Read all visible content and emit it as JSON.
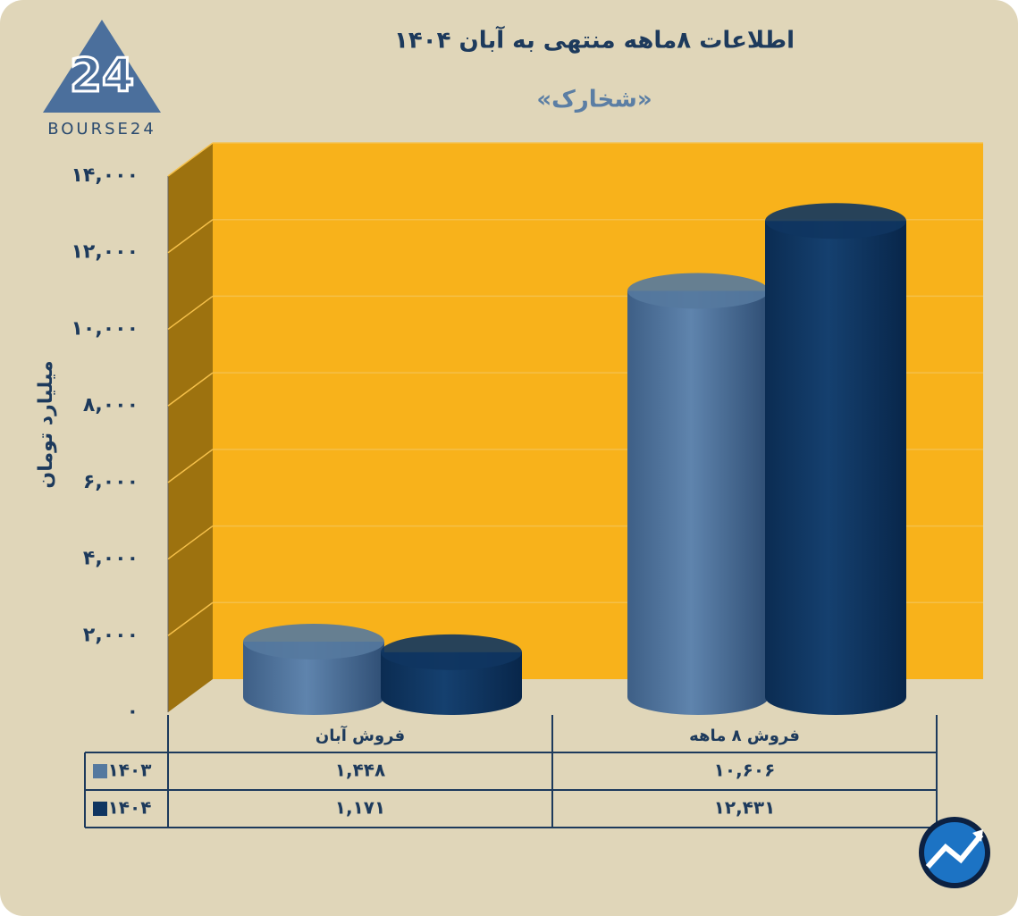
{
  "logo": {
    "mark": "24",
    "text": "BOURSE24"
  },
  "chart_data": {
    "type": "cylinder",
    "title": "اطلاعات ۸ماهه منتهی به آبان ۱۴۰۴",
    "subtitle": "«شخارک»",
    "y_label": "میلیارد تومان",
    "categories": [
      "فروش آبان",
      "فروش ۸ ماهه"
    ],
    "series": [
      {
        "name": "۱۴۰۳",
        "color": "#55799f",
        "values": [
          1448,
          10606
        ],
        "value_labels": [
          "۱,۴۴۸",
          "۱۰,۶۰۶"
        ]
      },
      {
        "name": "۱۴۰۴",
        "color": "#0f3561",
        "values": [
          1171,
          12431
        ],
        "value_labels": [
          "۱,۱۷۱",
          "۱۲,۴۳۱"
        ]
      }
    ],
    "ylim": [
      0,
      14000
    ],
    "yticks": [
      {
        "value": 0,
        "label": "۰"
      },
      {
        "value": 2000,
        "label": "۲,۰۰۰"
      },
      {
        "value": 4000,
        "label": "۴,۰۰۰"
      },
      {
        "value": 6000,
        "label": "۶,۰۰۰"
      },
      {
        "value": 8000,
        "label": "۸,۰۰۰"
      },
      {
        "value": 10000,
        "label": "۱۰,۰۰۰"
      },
      {
        "value": 12000,
        "label": "۱۲,۰۰۰"
      },
      {
        "value": 14000,
        "label": "۱۴,۰۰۰"
      }
    ],
    "grid": true
  }
}
